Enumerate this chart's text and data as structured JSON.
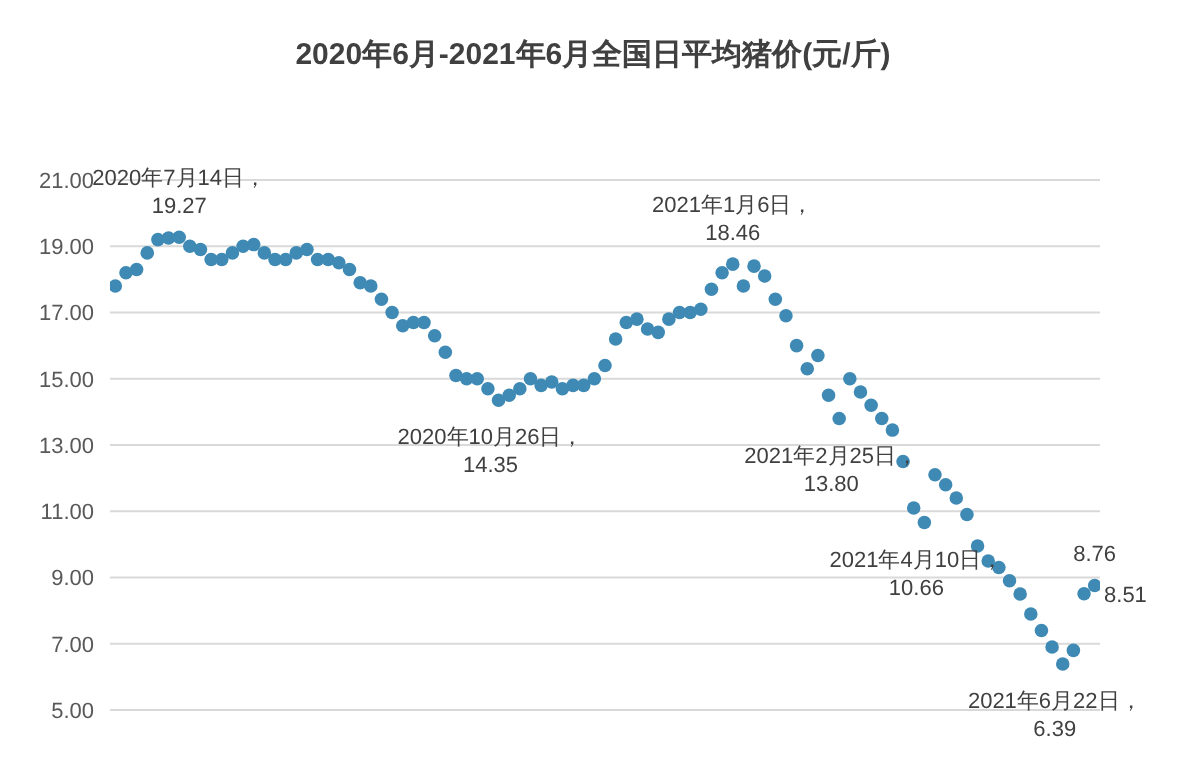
{
  "chart_data": {
    "type": "scatter",
    "title": "2020年6月-2021年6月全国日平均猪价(元/斤)",
    "categories": [
      null,
      null,
      null,
      null,
      null,
      null,
      null,
      null,
      null,
      null,
      null,
      null,
      null,
      null,
      null,
      null,
      null,
      null,
      null,
      null,
      null,
      null,
      null,
      null,
      null,
      null,
      null,
      null,
      null,
      null,
      null,
      null,
      null,
      null,
      null,
      null,
      null,
      null,
      null,
      null,
      null,
      null,
      null,
      null,
      null,
      null,
      null,
      null,
      null,
      null,
      null,
      null,
      null,
      null,
      null,
      null,
      null,
      null,
      null,
      null,
      null,
      null,
      null,
      null,
      null,
      null,
      null,
      null,
      null,
      null,
      null,
      null,
      null,
      null,
      null,
      null,
      null,
      null,
      null,
      null,
      null,
      null,
      null,
      null,
      null,
      null,
      null,
      null,
      null,
      null,
      null,
      null,
      null
    ],
    "series": [
      {
        "color": "#3f8ab5",
        "values": [
          17.8,
          18.2,
          18.3,
          18.8,
          19.2,
          19.25,
          19.27,
          19.0,
          18.9,
          18.6,
          18.6,
          18.8,
          19.0,
          19.05,
          18.8,
          18.6,
          18.6,
          18.8,
          18.9,
          18.6,
          18.6,
          18.5,
          18.3,
          17.9,
          17.8,
          17.4,
          17.0,
          16.6,
          16.7,
          16.7,
          16.3,
          15.8,
          15.1,
          15.0,
          15.0,
          14.7,
          14.35,
          14.5,
          14.7,
          15.0,
          14.8,
          14.9,
          14.7,
          14.8,
          14.8,
          15.0,
          15.4,
          16.2,
          16.7,
          16.8,
          16.5,
          16.4,
          16.8,
          17.0,
          17.0,
          17.1,
          17.7,
          18.2,
          18.46,
          17.8,
          18.4,
          18.1,
          17.4,
          16.9,
          16.0,
          15.3,
          15.7,
          14.5,
          13.8,
          15.0,
          14.6,
          14.2,
          13.8,
          13.45,
          12.5,
          11.1,
          10.66,
          12.1,
          11.8,
          11.4,
          10.9,
          9.95,
          9.5,
          9.3,
          8.9,
          8.5,
          7.9,
          7.4,
          6.9,
          6.39,
          6.8,
          8.51,
          8.76
        ],
        "value_labels": [
          null,
          null,
          null,
          null,
          null,
          null,
          "2020年7月14日，19.27",
          null,
          null,
          null,
          null,
          null,
          null,
          null,
          null,
          null,
          null,
          null,
          null,
          null,
          null,
          null,
          null,
          null,
          null,
          null,
          null,
          null,
          null,
          null,
          null,
          null,
          null,
          null,
          null,
          null,
          "2020年10月26日，14.35",
          null,
          null,
          null,
          null,
          null,
          null,
          null,
          null,
          null,
          null,
          null,
          null,
          null,
          null,
          null,
          null,
          null,
          null,
          null,
          null,
          null,
          "2021年1月6日，18.46",
          null,
          null,
          null,
          null,
          null,
          null,
          null,
          null,
          null,
          "2021年2月25日，13.80",
          null,
          null,
          null,
          null,
          null,
          null,
          null,
          "2021年4月10日，10.66",
          null,
          null,
          null,
          null,
          null,
          null,
          null,
          null,
          null,
          null,
          null,
          null,
          "2021年6月22日，6.39",
          null,
          "8.51",
          "8.76"
        ]
      }
    ],
    "ylim": [
      5,
      21
    ],
    "yticks": [
      {
        "value": 5,
        "label": "5.00"
      },
      {
        "value": 7,
        "label": "7.00"
      },
      {
        "value": 9,
        "label": "9.00"
      },
      {
        "value": 11,
        "label": "11.00"
      },
      {
        "value": 13,
        "label": "13.00"
      },
      {
        "value": 15,
        "label": "15.00"
      },
      {
        "value": 17,
        "label": "17.00"
      },
      {
        "value": 19,
        "label": "19.00"
      },
      {
        "value": 21,
        "label": "21.00"
      }
    ],
    "grid": "y",
    "marker": "circle"
  }
}
